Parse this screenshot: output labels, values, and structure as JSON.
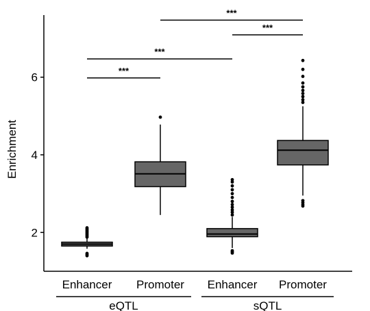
{
  "colors": {
    "box_fill": "#666666",
    "outline": "#000000",
    "background": "#ffffff"
  },
  "chart_data": {
    "type": "box",
    "ylabel": "Enrichment",
    "xlabel": "",
    "ylim": [
      1.0,
      7.6
    ],
    "yticks": [
      2,
      4,
      6
    ],
    "legend": "none",
    "grid": false,
    "groups": [
      {
        "label": "eQTL",
        "categories": [
          "Enhancer",
          "Promoter"
        ]
      },
      {
        "label": "sQTL",
        "categories": [
          "Enhancer",
          "Promoter"
        ]
      }
    ],
    "boxes": [
      {
        "group": "eQTL",
        "category": "Enhancer",
        "q1": 1.65,
        "median": 1.7,
        "q3": 1.75,
        "whisker_low": 1.58,
        "whisker_high": 1.86,
        "outliers": [
          1.4,
          1.43,
          1.46,
          1.88,
          1.91,
          1.94,
          1.97,
          2.0,
          2.03,
          2.06,
          2.09,
          2.12
        ]
      },
      {
        "group": "eQTL",
        "category": "Promoter",
        "q1": 3.18,
        "median": 3.51,
        "q3": 3.82,
        "whisker_low": 2.45,
        "whisker_high": 4.78,
        "outliers": [
          4.97
        ]
      },
      {
        "group": "sQTL",
        "category": "Enhancer",
        "q1": 1.89,
        "median": 1.96,
        "q3": 2.1,
        "whisker_low": 1.6,
        "whisker_high": 2.4,
        "outliers": [
          1.47,
          1.5,
          1.53,
          2.45,
          2.52,
          2.58,
          2.65,
          2.72,
          2.8,
          2.9,
          3.0,
          3.1,
          3.2,
          3.3,
          3.36
        ]
      },
      {
        "group": "sQTL",
        "category": "Promoter",
        "q1": 3.74,
        "median": 4.12,
        "q3": 4.37,
        "whisker_low": 2.95,
        "whisker_high": 5.25,
        "outliers": [
          2.68,
          2.72,
          2.77,
          2.82,
          5.35,
          5.42,
          5.5,
          5.58,
          5.66,
          5.75,
          5.85,
          6.02,
          6.2,
          6.43
        ]
      }
    ],
    "significance": [
      {
        "from_box": 0,
        "to_box": 1,
        "y": 5.98,
        "label": "***"
      },
      {
        "from_box": 0,
        "to_box": 2,
        "y": 6.47,
        "label": "***"
      },
      {
        "from_box": 2,
        "to_box": 3,
        "y": 7.09,
        "label": "***"
      },
      {
        "from_box": 1,
        "to_box": 3,
        "y": 7.47,
        "label": "***"
      }
    ]
  }
}
